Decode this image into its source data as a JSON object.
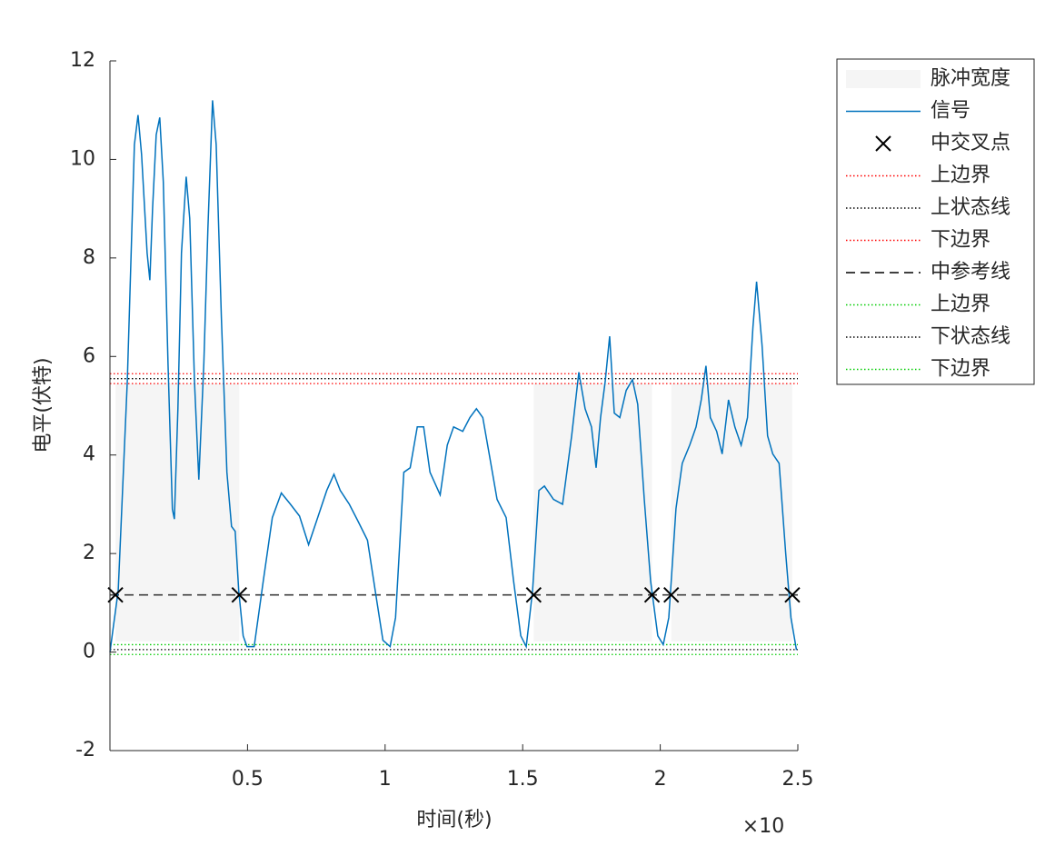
{
  "chart_data": {
    "type": "line",
    "xlabel": "时间(秒)",
    "ylabel": "电平(伏特)",
    "x_exponent_label": "×10",
    "xlim": [
      0,
      2.5
    ],
    "ylim": [
      -2,
      12
    ],
    "xticks": [
      0.5,
      1,
      1.5,
      2,
      2.5
    ],
    "yticks": [
      -2,
      0,
      2,
      4,
      6,
      8,
      10,
      12
    ],
    "legend_position": "outside-right",
    "pulse_width": {
      "name": "脉冲宽度",
      "color": "#f5f5f5",
      "starts": [
        0.02,
        1.54,
        2.04
      ],
      "ends": [
        0.47,
        1.97,
        2.48
      ],
      "bottom": 0.22,
      "top": 5.45
    },
    "signal": {
      "name": "信号",
      "color": "#0072bd",
      "x": [
        0,
        0.03,
        0.063,
        0.089,
        0.102,
        0.115,
        0.135,
        0.145,
        0.155,
        0.168,
        0.181,
        0.194,
        0.211,
        0.227,
        0.234,
        0.247,
        0.26,
        0.277,
        0.29,
        0.307,
        0.323,
        0.341,
        0.356,
        0.373,
        0.386,
        0.405,
        0.425,
        0.442,
        0.455,
        0.468,
        0.484,
        0.498,
        0.524,
        0.557,
        0.59,
        0.623,
        0.656,
        0.689,
        0.722,
        0.755,
        0.788,
        0.814,
        0.837,
        0.87,
        0.903,
        0.936,
        0.969,
        0.992,
        1.018,
        1.038,
        1.068,
        1.091,
        1.117,
        1.14,
        1.163,
        1.2,
        1.226,
        1.249,
        1.282,
        1.308,
        1.332,
        1.355,
        1.381,
        1.407,
        1.44,
        1.467,
        1.493,
        1.513,
        1.536,
        1.559,
        1.579,
        1.612,
        1.645,
        1.678,
        1.704,
        1.727,
        1.75,
        1.767,
        1.783,
        1.8,
        1.816,
        1.833,
        1.853,
        1.876,
        1.899,
        1.918,
        1.942,
        1.965,
        1.991,
        2.011,
        2.031,
        2.057,
        2.08,
        2.107,
        2.13,
        2.149,
        2.166,
        2.182,
        2.205,
        2.225,
        2.248,
        2.271,
        2.294,
        2.317,
        2.337,
        2.35,
        2.37,
        2.39,
        2.409,
        2.432,
        2.456,
        2.475,
        2.495
      ],
      "values": [
        0,
        1.25,
        5.5,
        10.3,
        10.9,
        10.1,
        8.1,
        7.55,
        9.0,
        10.5,
        10.85,
        9.55,
        5.85,
        2.9,
        2.7,
        4.95,
        8.1,
        9.65,
        8.8,
        5.5,
        3.5,
        5.85,
        8.6,
        11.2,
        10.3,
        6.8,
        3.65,
        2.55,
        2.45,
        1.25,
        0.33,
        0.11,
        0.11,
        1.44,
        2.73,
        3.23,
        3.0,
        2.76,
        2.18,
        2.73,
        3.28,
        3.61,
        3.28,
        3.0,
        2.64,
        2.27,
        1.07,
        0.24,
        0.11,
        0.7,
        3.65,
        3.74,
        4.57,
        4.57,
        3.65,
        3.19,
        4.2,
        4.57,
        4.48,
        4.76,
        4.94,
        4.76,
        3.93,
        3.1,
        2.73,
        1.44,
        0.33,
        0.11,
        1.25,
        3.28,
        3.37,
        3.1,
        3.0,
        4.39,
        5.68,
        4.94,
        4.57,
        3.74,
        4.76,
        5.49,
        6.41,
        4.85,
        4.76,
        5.31,
        5.53,
        5.03,
        3.1,
        1.44,
        0.33,
        0.15,
        0.7,
        2.91,
        3.83,
        4.2,
        4.57,
        5.12,
        5.81,
        4.76,
        4.48,
        4.02,
        5.12,
        4.57,
        4.2,
        4.76,
        6.6,
        7.52,
        6.23,
        4.39,
        4.02,
        3.83,
        1.99,
        0.7,
        0.04
      ]
    },
    "crossings": {
      "name": "中交叉点",
      "color": "#000000",
      "x": [
        0.02,
        0.47,
        1.54,
        1.97,
        2.04,
        2.48
      ],
      "values": [
        1.16,
        1.16,
        1.16,
        1.16,
        1.16,
        1.16
      ]
    },
    "reference_lines": [
      {
        "name": "上边界",
        "color": "#ff0000",
        "style": "dotted",
        "value": 5.65
      },
      {
        "name": "上状态线",
        "color": "#000000",
        "style": "dotted",
        "value": 5.55
      },
      {
        "name": "下边界",
        "color": "#ff0000",
        "style": "dotted",
        "value": 5.45
      },
      {
        "name": "中参考线",
        "color": "#000000",
        "style": "dashed",
        "value": 1.16
      },
      {
        "name": "上边界",
        "color": "#00cc00",
        "style": "dotted",
        "value": 0.15
      },
      {
        "name": "下状态线",
        "color": "#000000",
        "style": "dotted",
        "value": 0.05
      },
      {
        "name": "下边界",
        "color": "#00cc00",
        "style": "dotted",
        "value": -0.05
      }
    ]
  }
}
